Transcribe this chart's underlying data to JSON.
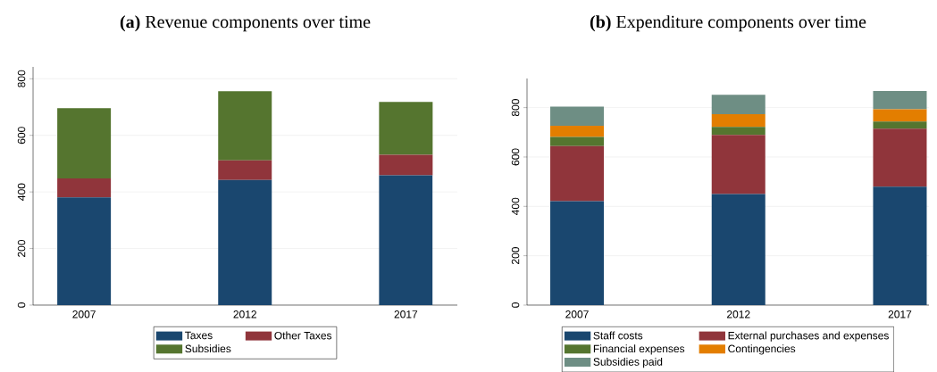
{
  "chart_data": [
    {
      "type": "bar",
      "title": "**(a)** Revenue components over time",
      "categories": [
        "2007",
        "2012",
        "2017"
      ],
      "stacked": true,
      "ylim": [
        0,
        842
      ],
      "yticks": [
        0,
        200,
        400,
        600,
        800
      ],
      "grid": "y",
      "legend": "bottom",
      "series": [
        {
          "name": "Taxes",
          "color": "#1a476f",
          "values": [
            381,
            442,
            459
          ]
        },
        {
          "name": "Other Taxes",
          "color": "#90353b",
          "values": [
            67,
            70,
            72
          ]
        },
        {
          "name": "Subsidies",
          "color": "#55752f",
          "values": [
            248,
            244,
            187
          ]
        }
      ]
    },
    {
      "type": "bar",
      "title": "**(b)** Expenditure components over time",
      "categories": [
        "2007",
        "2012",
        "2017"
      ],
      "stacked": true,
      "ylim": [
        0,
        918
      ],
      "yticks": [
        0,
        200,
        400,
        600,
        800
      ],
      "grid": "y",
      "legend": "bottom",
      "series": [
        {
          "name": "Staff costs",
          "color": "#1a476f",
          "values": [
            421,
            450,
            480
          ]
        },
        {
          "name": "External purchases and expenses",
          "color": "#90353b",
          "values": [
            223,
            239,
            235
          ]
        },
        {
          "name": "Financial expenses",
          "color": "#55752f",
          "values": [
            37,
            33,
            29
          ]
        },
        {
          "name": "Contingencies",
          "color": "#e37e00",
          "values": [
            45,
            51,
            49
          ]
        },
        {
          "name": "Subsidies paid",
          "color": "#6e8e84",
          "values": [
            78,
            79,
            74
          ]
        }
      ]
    }
  ]
}
